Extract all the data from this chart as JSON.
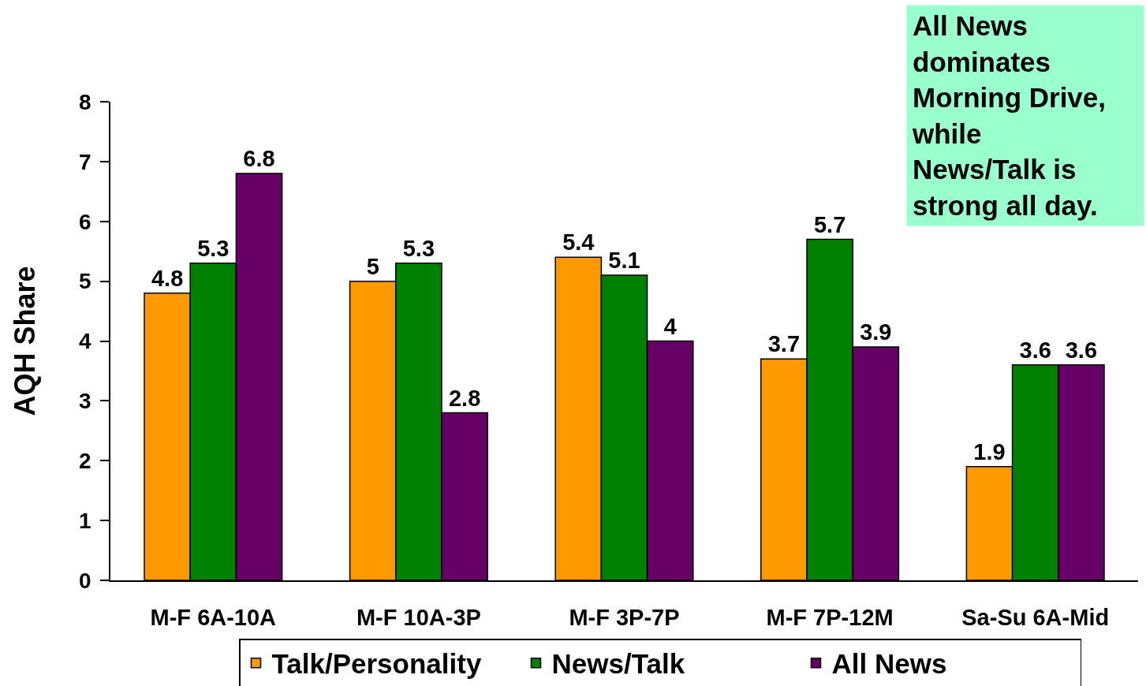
{
  "chart_data": {
    "type": "bar",
    "ylabel": "AQH Share",
    "categories": [
      "M-F 6A-10A",
      "M-F 10A-3P",
      "M-F 3P-7P",
      "M-F 7P-12M",
      "Sa-Su 6A-Mid"
    ],
    "series": [
      {
        "name": "Talk/Personality",
        "color": "#ff9900",
        "values": [
          4.8,
          5,
          5.4,
          3.7,
          1.9
        ]
      },
      {
        "name": "News/Talk",
        "color": "#008000",
        "values": [
          5.3,
          5.3,
          5.1,
          5.7,
          3.6
        ]
      },
      {
        "name": "All News",
        "color": "#660066",
        "values": [
          6.8,
          2.8,
          4,
          3.9,
          3.6
        ]
      }
    ],
    "ylim": [
      0,
      8
    ],
    "yticks": [
      0,
      1,
      2,
      3,
      4,
      5,
      6,
      7,
      8
    ],
    "data_labels": true,
    "legend": "bottom",
    "annotations": [
      "All News dominates Morning Drive, while News/Talk is strong all day."
    ]
  }
}
